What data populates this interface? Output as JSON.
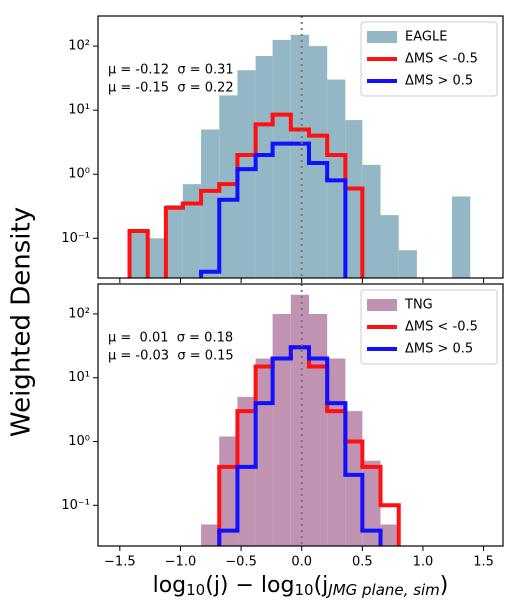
{
  "ylabel": "Weighted Density",
  "chart_data": [
    {
      "type": "histogram",
      "bins": [
        -1.42,
        -1.27,
        -1.12,
        -0.98,
        -0.83,
        -0.68,
        -0.53,
        -0.38,
        -0.24,
        -0.09,
        0.06,
        0.21,
        0.36,
        0.5,
        0.65,
        0.8,
        0.95,
        1.1,
        1.24,
        1.39
      ],
      "series": [
        {
          "name": "EAGLE",
          "color": "#93b7c4",
          "histtype": "stepfilled",
          "values": [
            0.13,
            0.1,
            0.33,
            0.7,
            5,
            17,
            42,
            70,
            125,
            150,
            100,
            30,
            7,
            1.4,
            0.23,
            0.065,
            0,
            0,
            0.45
          ]
        },
        {
          "name": "ΔMS < -0.5",
          "color": "#ff1111",
          "histtype": "step",
          "values": [
            0.13,
            0,
            0.3,
            0.35,
            0.55,
            0.7,
            2,
            6,
            8.5,
            5,
            4,
            2,
            0.6,
            0,
            0,
            0,
            0,
            0,
            0
          ]
        },
        {
          "name": "ΔMS > 0.5",
          "color": "#1111ff",
          "histtype": "step",
          "values": [
            0,
            0,
            0,
            0,
            0.03,
            0.4,
            1.2,
            2,
            3,
            3,
            1.5,
            0.8,
            0,
            0,
            0,
            0,
            0,
            0,
            0
          ]
        }
      ],
      "xlim": [
        -1.68,
        1.66
      ],
      "xticks": [
        -1.5,
        -1,
        -0.5,
        0,
        0.5,
        1,
        1.5
      ],
      "ylim": [
        0.024,
        295
      ],
      "log_y": true,
      "yticks": [
        {
          "value": 0.1,
          "label": "10⁻¹"
        },
        {
          "value": 1,
          "label": "10⁰"
        },
        {
          "value": 10,
          "label": "10¹"
        },
        {
          "value": 100,
          "label": "10²"
        }
      ],
      "vline": 0,
      "legend": "upper right",
      "annotations": [
        {
          "text": "μ = -0.12  σ = 0.31",
          "color": "#e8131b"
        },
        {
          "text": "μ = -0.15  σ = 0.22",
          "color": "#1a1ad0"
        }
      ]
    },
    {
      "type": "histogram",
      "bins": [
        -1.42,
        -1.27,
        -1.12,
        -0.98,
        -0.83,
        -0.68,
        -0.53,
        -0.38,
        -0.24,
        -0.09,
        0.06,
        0.21,
        0.36,
        0.5,
        0.65,
        0.8,
        0.95,
        1.1,
        1.24,
        1.39
      ],
      "series": [
        {
          "name": "TNG",
          "color": "#c093b3",
          "histtype": "stepfilled",
          "values": [
            0,
            0,
            0,
            0,
            0.05,
            1.2,
            5,
            20,
            100,
            200,
            100,
            20,
            3,
            0.5,
            0.05,
            0,
            0,
            0,
            0
          ]
        },
        {
          "name": "ΔMS < -0.5",
          "color": "#ff1111",
          "histtype": "step",
          "values": [
            0,
            0,
            0,
            0,
            0,
            0.4,
            3,
            15,
            20,
            30,
            15,
            3,
            1,
            0.4,
            0.1,
            0,
            0,
            0,
            0
          ]
        },
        {
          "name": "ΔMS > 0.5",
          "color": "#1111ff",
          "histtype": "step",
          "values": [
            0,
            0,
            0,
            0,
            0,
            0.04,
            0.4,
            4,
            20,
            30,
            20,
            4,
            0.3,
            0.04,
            0,
            0,
            0,
            0,
            0
          ]
        }
      ],
      "xlim": [
        -1.68,
        1.66
      ],
      "xticks": [
        {
          "value": -1.5,
          "label": "−1.5"
        },
        {
          "value": -1,
          "label": "−1.0"
        },
        {
          "value": -0.5,
          "label": "−0.5"
        },
        {
          "value": 0,
          "label": "0.0"
        },
        0.5,
        {
          "value": 1,
          "label": "1.0"
        },
        1.5
      ],
      "xlabel": [
        "log",
        "10",
        "(j) − log",
        "10",
        "(j",
        "JMG plane, sim",
        ")"
      ],
      "ylim": [
        0.023,
        295
      ],
      "log_y": true,
      "yticks": [
        {
          "value": 0.1,
          "label": "10⁻¹"
        },
        {
          "value": 1,
          "label": "10⁰"
        },
        {
          "value": 10,
          "label": "10¹"
        },
        {
          "value": 100,
          "label": "10²"
        }
      ],
      "vline": 0,
      "legend": "upper right",
      "annotations": [
        {
          "text": "μ =  0.01  σ = 0.18",
          "color": "#e8131b"
        },
        {
          "text": "μ = -0.03  σ = 0.15",
          "color": "#1a1ad0"
        }
      ]
    }
  ]
}
